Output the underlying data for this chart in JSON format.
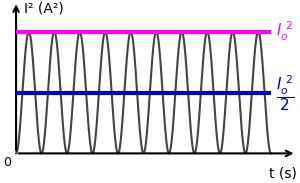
{
  "title": "",
  "ylabel": "I² (A²)",
  "xlabel": "t (s)",
  "I0_squared": 1.0,
  "half_I0_squared": 0.5,
  "num_cycles": 5,
  "ylim": [
    -0.15,
    1.25
  ],
  "xlim": [
    -0.05,
    1.1
  ],
  "bg_color": "#ffffff",
  "sine_color": "#444444",
  "magenta_color": "#ff00ff",
  "blue_color": "#0000cc",
  "sine_lw": 1.5,
  "hline_lw": 3.0,
  "label_magenta": "$I_o^{\\,2}$",
  "label_blue": "$\\dfrac{I_o^{\\,2}}{2}$",
  "zero_label": "0"
}
